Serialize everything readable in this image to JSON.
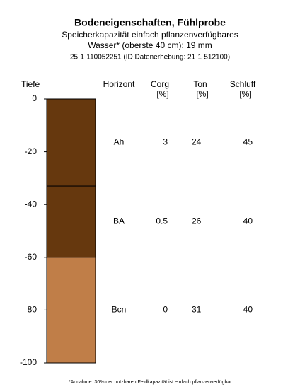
{
  "chart_data": {
    "type": "profile",
    "title": "Bodeneigenschaften, Fühlprobe",
    "subtitle": [
      "Speicherkapazität einfach pflanzenverfügbares",
      "Wasser* (oberste 40 cm): 19 mm",
      "25-1-110052251 (ID Datenerhebung: 21-1-512100)"
    ],
    "footnote": "*Annahme: 30% der nutzbaren Feldkapazität ist einfach pflanzenverfügbar.",
    "y_label": "Tiefe",
    "ylim": [
      0,
      -100
    ],
    "yticks": [
      0,
      -20,
      -40,
      -60,
      -80,
      -100
    ],
    "columns": [
      {
        "name": "Horizont"
      },
      {
        "name": "Corg",
        "unit": "[%]"
      },
      {
        "name": "Ton",
        "unit": "[%]"
      },
      {
        "name": "Schluff",
        "unit": "[%]"
      }
    ],
    "horizons": [
      {
        "name": "Ah",
        "top": 0,
        "bottom": -33,
        "color": "#66380e",
        "values": [
          3,
          24,
          45
        ]
      },
      {
        "name": "BA",
        "top": -33,
        "bottom": -60,
        "color": "#66380e",
        "values": [
          0.5,
          26,
          40
        ]
      },
      {
        "name": "Bcn",
        "top": -60,
        "bottom": -100,
        "color": "#c07e48",
        "values": [
          0,
          31,
          40
        ]
      }
    ]
  }
}
